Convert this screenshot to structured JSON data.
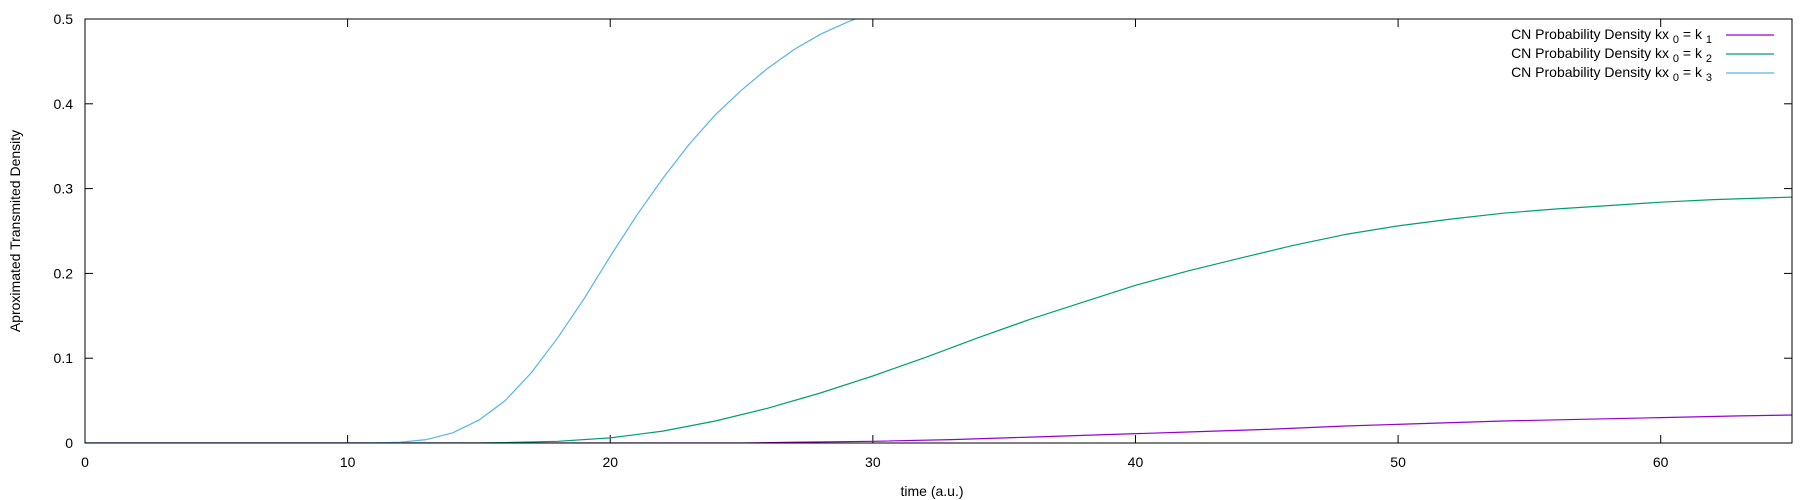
{
  "chart_data": {
    "type": "line",
    "title": "",
    "xlabel": "time (a.u.)",
    "ylabel": "Aproximated Transmited Density",
    "xlim": [
      0,
      65
    ],
    "ylim": [
      0,
      0.5
    ],
    "xticks": [
      0,
      10,
      20,
      30,
      40,
      50,
      60
    ],
    "yticks": [
      0,
      0.1,
      0.2,
      0.3,
      0.4,
      0.5
    ],
    "ytick_labels": [
      "0",
      "0.1",
      "0.2",
      "0.3",
      "0.4",
      "0.5"
    ],
    "grid": false,
    "legend_position": "top-right",
    "series": [
      {
        "name": "CN Probability Density kx 0 = k 1",
        "legend": {
          "prefix": "CN Probability Density kx",
          "sub1": "0",
          "mid": " = k",
          "sub2": "1"
        },
        "color": "#9400d3",
        "x": [
          0,
          25,
          27,
          30,
          33,
          36,
          39,
          42,
          45,
          48,
          51,
          54,
          57,
          60,
          63,
          65
        ],
        "y": [
          0,
          0.0,
          0.001,
          0.002,
          0.004,
          0.007,
          0.01,
          0.013,
          0.016,
          0.02,
          0.023,
          0.026,
          0.028,
          0.03,
          0.032,
          0.033
        ]
      },
      {
        "name": "CN Probability Density kx 0 = k 2",
        "legend": {
          "prefix": "CN Probability Density kx",
          "sub1": "0",
          "mid": " = k",
          "sub2": "2"
        },
        "color": "#009e73",
        "x": [
          0,
          15,
          16,
          18,
          20,
          22,
          24,
          26,
          28,
          30,
          32,
          34,
          36,
          38,
          40,
          42,
          44,
          46,
          48,
          50,
          52,
          54,
          56,
          58,
          60,
          62,
          65
        ],
        "y": [
          0,
          0,
          0.0005,
          0.002,
          0.006,
          0.014,
          0.026,
          0.041,
          0.059,
          0.079,
          0.101,
          0.124,
          0.146,
          0.166,
          0.186,
          0.203,
          0.218,
          0.233,
          0.246,
          0.256,
          0.264,
          0.271,
          0.276,
          0.28,
          0.284,
          0.287,
          0.29
        ]
      },
      {
        "name": "CN Probability Density kx 0 = k 3",
        "legend": {
          "prefix": "CN Probability Density kx",
          "sub1": "0",
          "mid": " = k",
          "sub2": "3"
        },
        "color": "#56b4e9",
        "x": [
          0,
          11,
          12,
          13,
          14,
          15,
          16,
          17,
          18,
          19,
          20,
          21,
          22,
          23,
          24,
          25,
          26,
          27,
          28,
          29,
          29.5
        ],
        "y": [
          0,
          0,
          0.001,
          0.004,
          0.012,
          0.027,
          0.05,
          0.083,
          0.124,
          0.17,
          0.22,
          0.268,
          0.312,
          0.352,
          0.387,
          0.416,
          0.442,
          0.464,
          0.482,
          0.496,
          0.502
        ]
      }
    ]
  }
}
